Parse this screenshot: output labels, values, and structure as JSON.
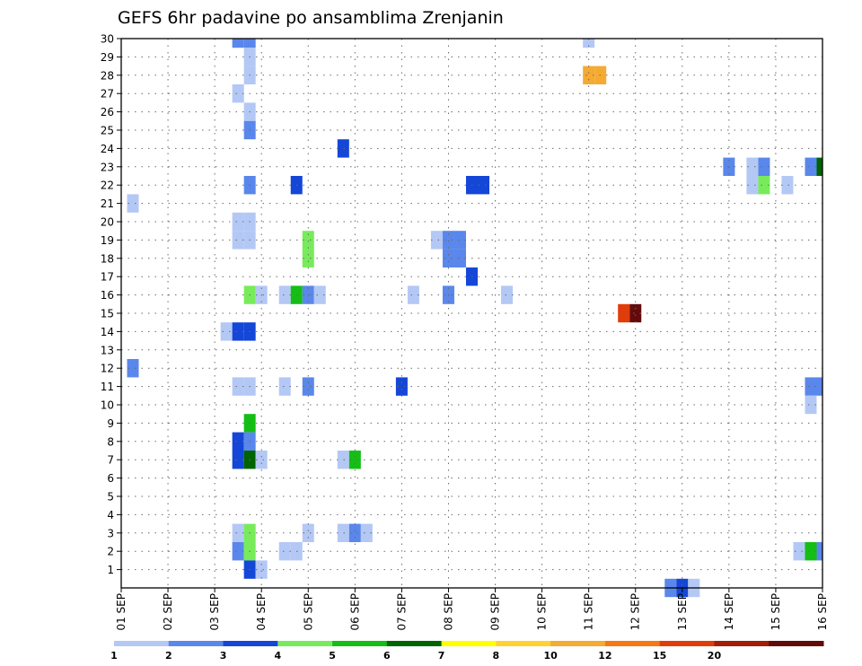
{
  "chart_data": {
    "type": "heatmap",
    "title": "GEFS 6hr padavine po ansamblima Zrenjanin",
    "xlabel": "",
    "ylabel": "",
    "x_tick_labels": [
      "01 SEP",
      "02 SEP",
      "03 SEP",
      "04 SEP",
      "05 SEP",
      "06 SEP",
      "07 SEP",
      "08 SEP",
      "09 SEP",
      "10 SEP",
      "11 SEP",
      "12 SEP",
      "13 SEP",
      "14 SEP",
      "15 SEP",
      "16 SEP"
    ],
    "y_tick_labels": [
      "1",
      "2",
      "3",
      "4",
      "5",
      "6",
      "7",
      "8",
      "9",
      "10",
      "11",
      "12",
      "13",
      "14",
      "15",
      "16",
      "17",
      "18",
      "19",
      "20",
      "21",
      "22",
      "23",
      "24",
      "25",
      "26",
      "27",
      "28",
      "29",
      "30"
    ],
    "xlim": [
      0,
      60
    ],
    "ylim": [
      0,
      30
    ],
    "grid": true,
    "colorbar": {
      "labels": [
        "1",
        "2",
        "3",
        "4",
        "5",
        "6",
        "7",
        "8",
        "10",
        "12",
        "15",
        "20"
      ],
      "colors": [
        "#b4c8f5",
        "#5a87eb",
        "#1446d7",
        "#78eb5a",
        "#14be14",
        "#006400",
        "#ffff00",
        "#ffd232",
        "#f5aa32",
        "#f57814",
        "#e13c0a",
        "#a01e0a",
        "#640a0a"
      ]
    },
    "cells": [
      {
        "t": 10,
        "m": 30,
        "c": 2
      },
      {
        "t": 11,
        "m": 30,
        "c": 2
      },
      {
        "t": 40,
        "m": 30,
        "c": 1
      },
      {
        "t": 11,
        "m": 29,
        "c": 1
      },
      {
        "t": 11,
        "m": 28,
        "c": 1
      },
      {
        "t": 40,
        "m": 28,
        "c": 9
      },
      {
        "t": 41,
        "m": 28,
        "c": 9
      },
      {
        "t": 10,
        "m": 27,
        "c": 1
      },
      {
        "t": 11,
        "m": 26,
        "c": 1
      },
      {
        "t": 11,
        "m": 25,
        "c": 2
      },
      {
        "t": 19,
        "m": 24,
        "c": 3
      },
      {
        "t": 52,
        "m": 23,
        "c": 2
      },
      {
        "t": 54,
        "m": 23,
        "c": 1
      },
      {
        "t": 55,
        "m": 23,
        "c": 2
      },
      {
        "t": 59,
        "m": 23,
        "c": 2
      },
      {
        "t": 60,
        "m": 23,
        "c": 6
      },
      {
        "t": 11,
        "m": 22,
        "c": 2
      },
      {
        "t": 15,
        "m": 22,
        "c": 3
      },
      {
        "t": 30,
        "m": 22,
        "c": 3
      },
      {
        "t": 31,
        "m": 22,
        "c": 3
      },
      {
        "t": 54,
        "m": 22,
        "c": 1
      },
      {
        "t": 55,
        "m": 22,
        "c": 4
      },
      {
        "t": 57,
        "m": 22,
        "c": 1
      },
      {
        "t": 1,
        "m": 21,
        "c": 1
      },
      {
        "t": 10,
        "m": 20,
        "c": 1
      },
      {
        "t": 11,
        "m": 20,
        "c": 1
      },
      {
        "t": 10,
        "m": 19,
        "c": 1
      },
      {
        "t": 11,
        "m": 19,
        "c": 1
      },
      {
        "t": 16,
        "m": 19,
        "c": 4
      },
      {
        "t": 27,
        "m": 19,
        "c": 1
      },
      {
        "t": 28,
        "m": 19,
        "c": 2
      },
      {
        "t": 29,
        "m": 19,
        "c": 2
      },
      {
        "t": 16,
        "m": 18,
        "c": 4
      },
      {
        "t": 28,
        "m": 18,
        "c": 2
      },
      {
        "t": 29,
        "m": 18,
        "c": 2
      },
      {
        "t": 30,
        "m": 17,
        "c": 3
      },
      {
        "t": 11,
        "m": 16,
        "c": 4
      },
      {
        "t": 12,
        "m": 16,
        "c": 1
      },
      {
        "t": 14,
        "m": 16,
        "c": 1
      },
      {
        "t": 15,
        "m": 16,
        "c": 5
      },
      {
        "t": 16,
        "m": 16,
        "c": 2
      },
      {
        "t": 17,
        "m": 16,
        "c": 1
      },
      {
        "t": 25,
        "m": 16,
        "c": 1
      },
      {
        "t": 28,
        "m": 16,
        "c": 2
      },
      {
        "t": 33,
        "m": 16,
        "c": 1
      },
      {
        "t": 43,
        "m": 15,
        "c": 11
      },
      {
        "t": 44,
        "m": 15,
        "c": 13
      },
      {
        "t": 9,
        "m": 14,
        "c": 1
      },
      {
        "t": 10,
        "m": 14,
        "c": 3
      },
      {
        "t": 11,
        "m": 14,
        "c": 3
      },
      {
        "t": 1,
        "m": 12,
        "c": 2
      },
      {
        "t": 10,
        "m": 11,
        "c": 1
      },
      {
        "t": 11,
        "m": 11,
        "c": 1
      },
      {
        "t": 14,
        "m": 11,
        "c": 1
      },
      {
        "t": 16,
        "m": 11,
        "c": 2
      },
      {
        "t": 24,
        "m": 11,
        "c": 3
      },
      {
        "t": 59,
        "m": 11,
        "c": 2
      },
      {
        "t": 60,
        "m": 11,
        "c": 2
      },
      {
        "t": 59,
        "m": 10,
        "c": 1
      },
      {
        "t": 11,
        "m": 9,
        "c": 5
      },
      {
        "t": 10,
        "m": 8,
        "c": 3
      },
      {
        "t": 11,
        "m": 8,
        "c": 2
      },
      {
        "t": 10,
        "m": 7,
        "c": 3
      },
      {
        "t": 11,
        "m": 7,
        "c": 6
      },
      {
        "t": 12,
        "m": 7,
        "c": 1
      },
      {
        "t": 19,
        "m": 7,
        "c": 1
      },
      {
        "t": 20,
        "m": 7,
        "c": 5
      },
      {
        "t": 10,
        "m": 3,
        "c": 1
      },
      {
        "t": 11,
        "m": 3,
        "c": 4
      },
      {
        "t": 16,
        "m": 3,
        "c": 1
      },
      {
        "t": 19,
        "m": 3,
        "c": 1
      },
      {
        "t": 20,
        "m": 3,
        "c": 2
      },
      {
        "t": 21,
        "m": 3,
        "c": 1
      },
      {
        "t": 10,
        "m": 2,
        "c": 2
      },
      {
        "t": 11,
        "m": 2,
        "c": 4
      },
      {
        "t": 14,
        "m": 2,
        "c": 1
      },
      {
        "t": 15,
        "m": 2,
        "c": 1
      },
      {
        "t": 58,
        "m": 2,
        "c": 1
      },
      {
        "t": 59,
        "m": 2,
        "c": 5
      },
      {
        "t": 60,
        "m": 2,
        "c": 2
      },
      {
        "t": 11,
        "m": 1,
        "c": 3
      },
      {
        "t": 12,
        "m": 1,
        "c": 1
      },
      {
        "t": 47,
        "m": 0,
        "c": 2
      },
      {
        "t": 48,
        "m": 0,
        "c": 3
      },
      {
        "t": 49,
        "m": 0,
        "c": 1
      }
    ]
  }
}
